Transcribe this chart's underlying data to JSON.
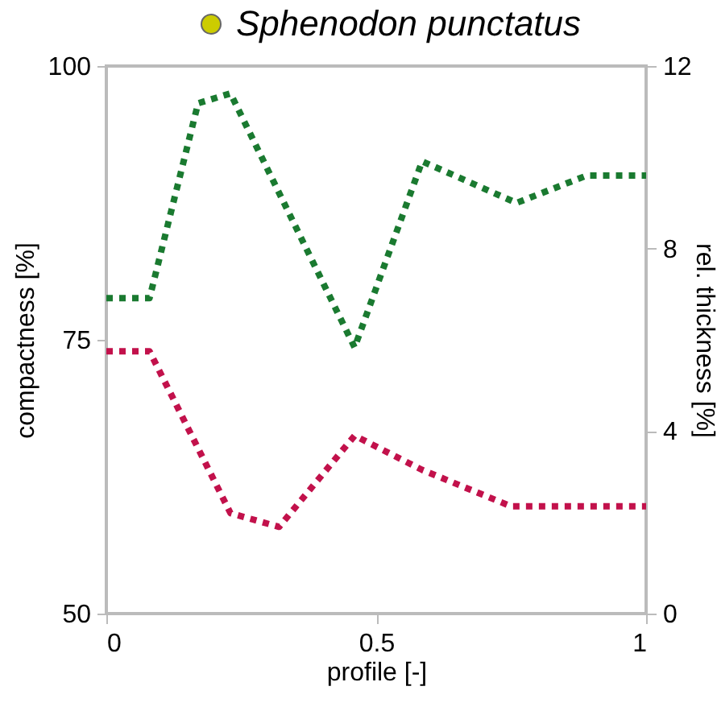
{
  "chart_data": {
    "type": "line",
    "title": "Sphenodon punctatus",
    "xlabel": "profile [-]",
    "ylabel": "compactness [%]",
    "y2label": "rel. thickness [%]",
    "xlim": [
      0,
      1
    ],
    "xticks": [
      0,
      0.5,
      1
    ],
    "ylim": [
      50,
      100
    ],
    "yticks": [
      50,
      75,
      100
    ],
    "y2lim": [
      0,
      12
    ],
    "y2ticks": [
      0,
      4,
      8,
      12
    ],
    "grid": false,
    "marker": "none",
    "line_style": "dotted",
    "series": [
      {
        "color": "#1a7a30",
        "x": [
          0,
          0.08,
          0.17,
          0.23,
          0.46,
          0.585,
          0.76,
          0.89,
          1
        ],
        "values": [
          78.8,
          78.8,
          96.6,
          97.5,
          74.3,
          91.3,
          87.5,
          90,
          90
        ]
      },
      {
        "color": "#c2114b",
        "axis": "y2",
        "x": [
          0,
          0.08,
          0.23,
          0.32,
          0.46,
          0.585,
          0.75,
          1
        ],
        "values": [
          5.75,
          5.75,
          2.2,
          1.9,
          3.9,
          3.15,
          2.35,
          2.35
        ]
      }
    ]
  }
}
